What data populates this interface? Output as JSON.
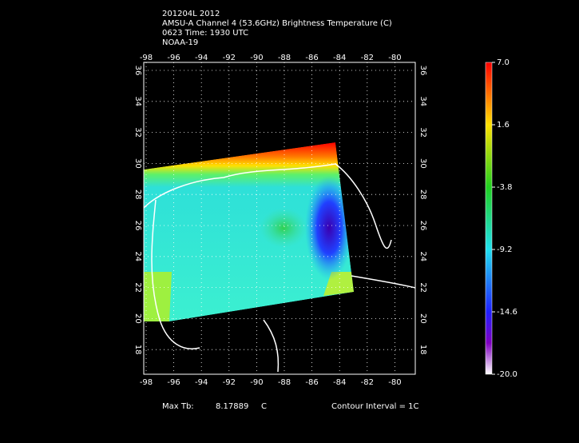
{
  "header": {
    "lines": [
      "201204L 2012",
      "AMSU-A Channel 4 (53.6GHz) Brightness Temperature (C)",
      "0623 Time: 1930 UTC",
      "NOAA-19"
    ]
  },
  "map": {
    "lon_ticks": [
      "-98",
      "-96",
      "-94",
      "-92",
      "-90",
      "-88",
      "-86",
      "-84",
      "-82",
      "-80"
    ],
    "lat_ticks": [
      "36",
      "34",
      "32",
      "30",
      "28",
      "26",
      "24",
      "22",
      "20",
      "18"
    ]
  },
  "colorbar": {
    "labels": [
      "7.0",
      "1.6",
      "-3.8",
      "-9.2",
      "-14.6",
      "-20.0"
    ]
  },
  "footer": {
    "max_label": "Max Tb:",
    "max_value": "8.17889",
    "max_unit": "C",
    "contour": "Contour Interval = 1C"
  }
}
